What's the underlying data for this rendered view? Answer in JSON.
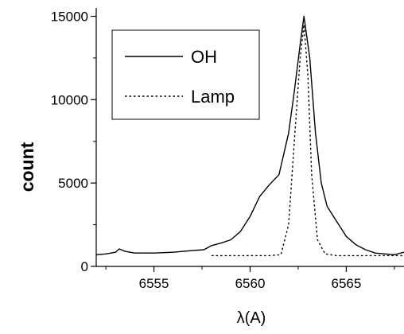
{
  "chart_data": {
    "type": "line",
    "xlabel": "λ(A)",
    "ylabel": "count",
    "xlim": [
      6552,
      6568
    ],
    "ylim": [
      0,
      15500
    ],
    "xticks": [
      6555,
      6560,
      6565
    ],
    "yticks": [
      0,
      5000,
      10000,
      15000
    ],
    "grid": false,
    "legend": {
      "position": "top-left"
    },
    "series": [
      {
        "name": "OH",
        "style": "solid",
        "color": "#000000",
        "x": [
          6552.0,
          6552.5,
          6553.0,
          6553.2,
          6553.5,
          6554.0,
          6555.0,
          6556.0,
          6557.0,
          6557.6,
          6558.0,
          6558.5,
          6559.0,
          6559.5,
          6560.0,
          6560.5,
          6561.0,
          6561.5,
          6562.0,
          6562.3,
          6562.6,
          6562.8,
          6563.1,
          6563.4,
          6563.7,
          6564.0,
          6564.5,
          6565.0,
          6565.5,
          6566.0,
          6566.5,
          6567.0,
          6567.5,
          6568.0
        ],
        "y": [
          700,
          750,
          850,
          1050,
          900,
          800,
          800,
          850,
          950,
          1000,
          1250,
          1400,
          1600,
          2100,
          3000,
          4200,
          4900,
          5500,
          8000,
          10500,
          13300,
          15000,
          12500,
          8000,
          5000,
          3600,
          2700,
          1800,
          1300,
          1000,
          800,
          750,
          700,
          850
        ]
      },
      {
        "name": "Lamp",
        "style": "dotted",
        "color": "#000000",
        "x": [
          6558.0,
          6559.0,
          6560.0,
          6561.0,
          6561.6,
          6562.0,
          6562.3,
          6562.6,
          6562.8,
          6563.0,
          6563.2,
          6563.5,
          6563.9,
          6564.5,
          6565.0,
          6566.0,
          6567.0,
          6568.0
        ],
        "y": [
          650,
          650,
          650,
          650,
          700,
          2500,
          7500,
          12500,
          14500,
          11500,
          5500,
          1600,
          750,
          650,
          650,
          650,
          650,
          650
        ]
      }
    ]
  }
}
